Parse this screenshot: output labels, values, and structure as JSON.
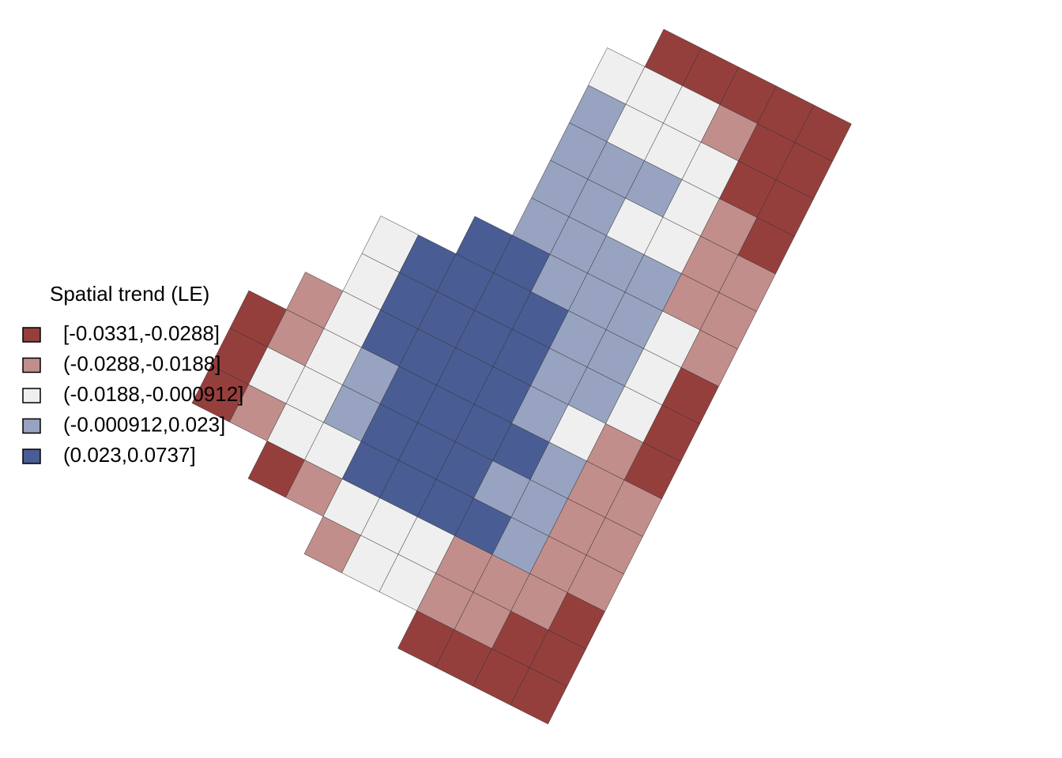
{
  "legend": {
    "title": "Spatial trend (LE)",
    "classes": [
      {
        "label": "[-0.0331,-0.0288]",
        "color": "#953f3d"
      },
      {
        "label": "(-0.0288,-0.0188]",
        "color": "#c18e8b"
      },
      {
        "label": "(-0.0188,-0.000912]",
        "color": "#efefef"
      },
      {
        "label": "(-0.000912,0.023]",
        "color": "#97a3c0"
      },
      {
        "label": "(0.023,0.0737]",
        "color": "#4a5c94"
      }
    ]
  },
  "grid": {
    "rows": [
      [
        null,
        null,
        null,
        null,
        null,
        null,
        0,
        0,
        0,
        0,
        0
      ],
      [
        null,
        null,
        null,
        null,
        null,
        2,
        2,
        2,
        1,
        0,
        0
      ],
      [
        null,
        null,
        null,
        null,
        null,
        3,
        2,
        2,
        2,
        0,
        0
      ],
      [
        null,
        null,
        null,
        null,
        null,
        3,
        3,
        3,
        2,
        1,
        0
      ],
      [
        null,
        null,
        null,
        null,
        null,
        3,
        3,
        2,
        2,
        1,
        1
      ],
      [
        null,
        null,
        null,
        null,
        null,
        3,
        3,
        3,
        3,
        1,
        1
      ],
      [
        null,
        null,
        null,
        null,
        4,
        4,
        3,
        3,
        3,
        2,
        1
      ],
      [
        null,
        null,
        2,
        4,
        4,
        4,
        4,
        3,
        3,
        2,
        0
      ],
      [
        null,
        null,
        2,
        4,
        4,
        4,
        4,
        3,
        3,
        2,
        0
      ],
      [
        null,
        1,
        2,
        4,
        4,
        4,
        4,
        3,
        2,
        1,
        0
      ],
      [
        0,
        1,
        2,
        3,
        4,
        4,
        4,
        4,
        3,
        1,
        1
      ],
      [
        0,
        2,
        2,
        3,
        4,
        4,
        4,
        3,
        3,
        1,
        1
      ],
      [
        0,
        1,
        2,
        2,
        4,
        4,
        4,
        4,
        3,
        1,
        1
      ],
      [
        null,
        null,
        0,
        1,
        2,
        2,
        2,
        1,
        1,
        1,
        0
      ],
      [
        null,
        null,
        null,
        null,
        1,
        2,
        2,
        1,
        1,
        0,
        0
      ],
      [
        null,
        null,
        null,
        null,
        null,
        null,
        null,
        0,
        0,
        0,
        0
      ]
    ]
  }
}
